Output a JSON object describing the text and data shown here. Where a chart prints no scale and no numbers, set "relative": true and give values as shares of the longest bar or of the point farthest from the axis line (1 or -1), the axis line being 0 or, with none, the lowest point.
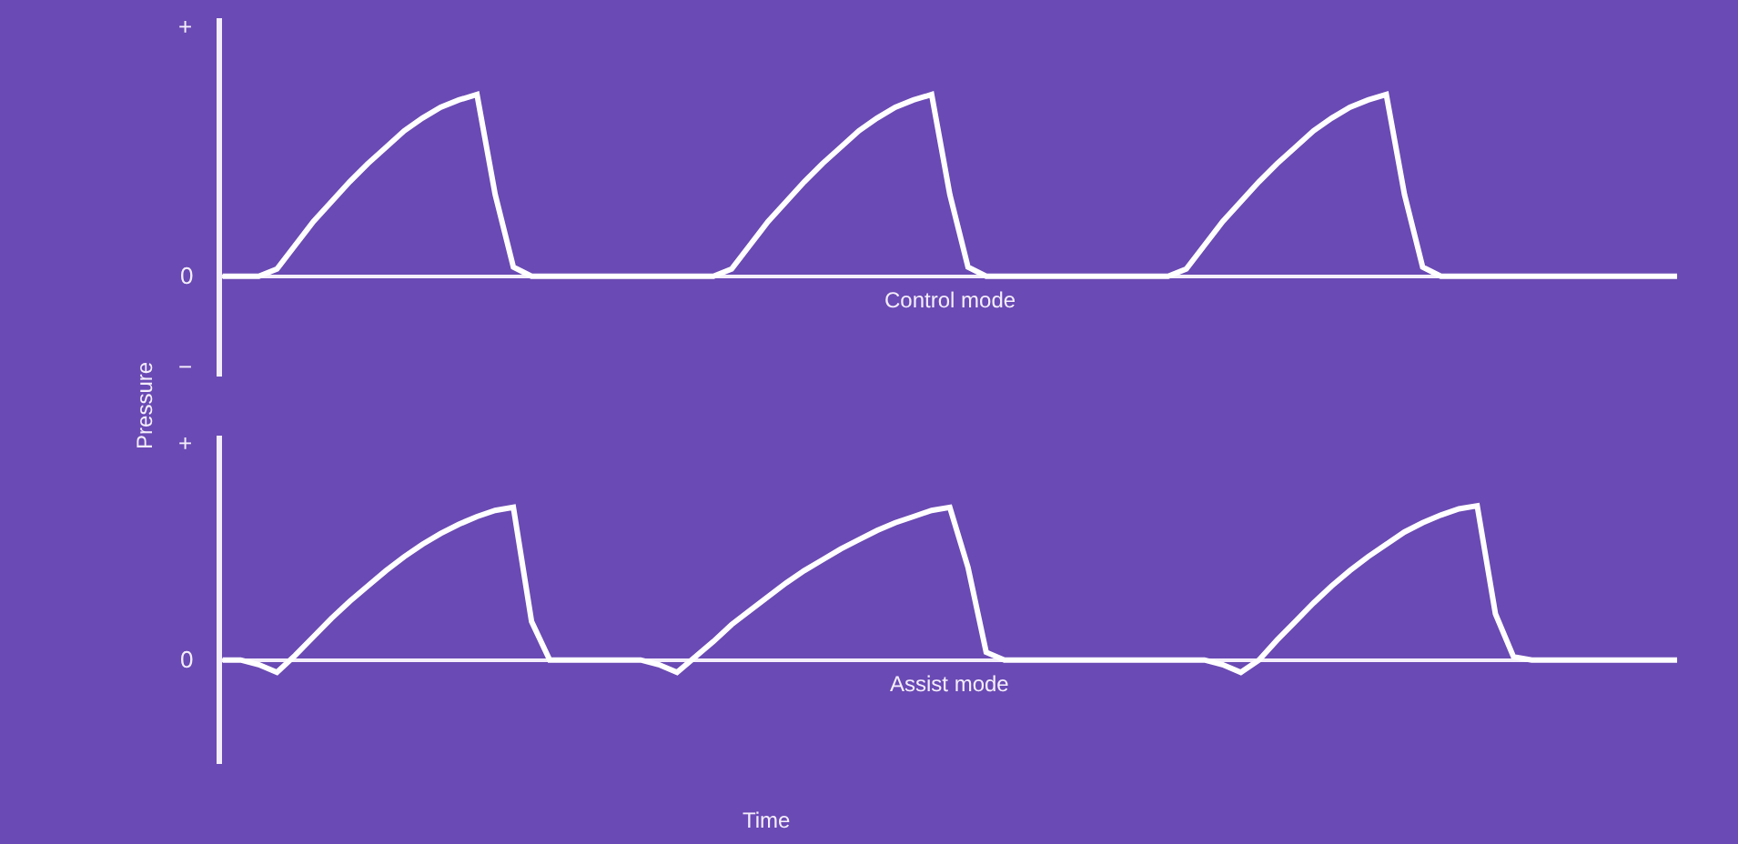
{
  "chart_data": [
    {
      "type": "line",
      "relative": true,
      "ylabel": "Pressure",
      "grid": false,
      "marker": "none",
      "line_style": "solid",
      "categories": [
        null,
        null,
        null,
        null,
        null,
        null,
        null,
        null,
        null,
        null,
        null,
        null,
        null,
        null,
        null,
        null,
        null,
        null,
        null,
        null,
        null,
        null,
        null,
        null,
        null,
        null,
        null,
        null,
        null,
        null,
        null,
        null,
        null,
        null,
        null,
        null,
        null,
        null,
        null,
        null,
        null,
        null,
        null,
        null,
        null,
        null,
        null,
        null,
        null,
        null,
        null,
        null,
        null,
        null,
        null,
        null,
        null,
        null,
        null,
        null,
        null,
        null,
        null,
        null,
        null,
        null,
        null,
        null,
        null,
        null,
        null,
        null,
        null,
        null,
        null,
        null,
        null,
        null,
        null,
        null,
        null
      ],
      "series": [
        {
          "color": "#ffffff",
          "values": [
            0,
            0,
            0,
            0.04,
            0.17,
            0.3,
            0.41,
            0.52,
            0.62,
            0.71,
            0.8,
            0.87,
            0.93,
            0.97,
            1,
            0.45,
            0.05,
            0,
            0,
            0,
            0,
            0,
            0,
            0,
            0,
            0,
            0,
            0,
            0.04,
            0.17,
            0.3,
            0.41,
            0.52,
            0.62,
            0.71,
            0.8,
            0.87,
            0.93,
            0.97,
            1,
            0.45,
            0.05,
            0,
            0,
            0,
            0,
            0,
            0,
            0,
            0,
            0,
            0,
            0,
            0.04,
            0.17,
            0.3,
            0.41,
            0.52,
            0.62,
            0.71,
            0.8,
            0.87,
            0.93,
            0.97,
            1,
            0.45,
            0.05,
            0,
            0,
            0,
            0,
            0,
            0,
            0,
            0,
            0,
            0,
            0,
            0,
            0,
            0
          ]
        }
      ],
      "annotations": [
        "+",
        "0",
        "−",
        "Control mode"
      ]
    },
    {
      "type": "line",
      "relative": true,
      "xlabel": "Time",
      "grid": false,
      "marker": "none",
      "line_style": "solid",
      "categories": [
        null,
        null,
        null,
        null,
        null,
        null,
        null,
        null,
        null,
        null,
        null,
        null,
        null,
        null,
        null,
        null,
        null,
        null,
        null,
        null,
        null,
        null,
        null,
        null,
        null,
        null,
        null,
        null,
        null,
        null,
        null,
        null,
        null,
        null,
        null,
        null,
        null,
        null,
        null,
        null,
        null,
        null,
        null,
        null,
        null,
        null,
        null,
        null,
        null,
        null,
        null,
        null,
        null,
        null,
        null,
        null,
        null,
        null,
        null,
        null,
        null,
        null,
        null,
        null,
        null,
        null,
        null,
        null,
        null,
        null,
        null,
        null,
        null,
        null,
        null,
        null,
        null,
        null,
        null,
        null,
        null
      ],
      "series": [
        {
          "color": "#ffffff",
          "values": [
            0,
            0,
            -0.03,
            -0.08,
            0.03,
            0.15,
            0.27,
            0.38,
            0.48,
            0.58,
            0.67,
            0.75,
            0.82,
            0.88,
            0.93,
            0.97,
            0.99,
            0.25,
            0,
            0,
            0,
            0,
            0,
            0,
            -0.03,
            -0.08,
            0.02,
            0.12,
            0.23,
            0.32,
            0.41,
            0.5,
            0.58,
            0.65,
            0.72,
            0.78,
            0.84,
            0.89,
            0.93,
            0.97,
            0.99,
            0.6,
            0.05,
            0,
            0,
            0,
            0,
            0,
            0,
            0,
            0,
            0,
            0,
            0,
            0,
            -0.03,
            -0.08,
            0,
            0.13,
            0.25,
            0.37,
            0.48,
            0.58,
            0.67,
            0.75,
            0.83,
            0.89,
            0.94,
            0.98,
            1,
            0.3,
            0.02,
            0,
            0,
            0,
            0,
            0,
            0,
            0,
            0,
            0
          ]
        }
      ],
      "annotations": [
        "+",
        "0",
        "Assist mode"
      ]
    }
  ]
}
